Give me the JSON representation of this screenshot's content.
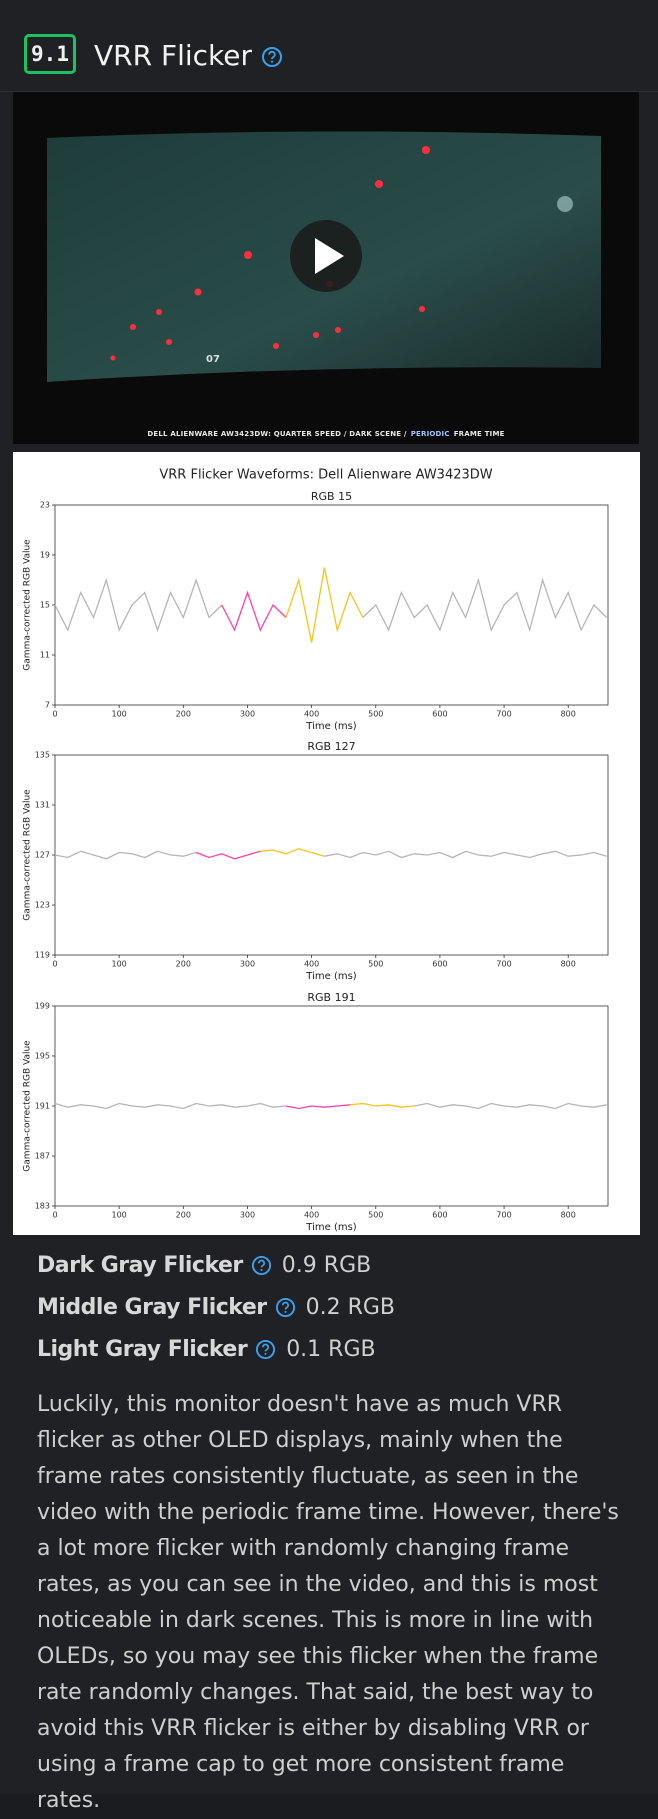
{
  "header": {
    "score": "9.1",
    "title": "VRR Flicker"
  },
  "video": {
    "overlay_text": "07",
    "caption": [
      "DELL ALIENWARE AW3423DW: QUARTER SPEED / DARK SCENE /",
      "PERIODIC",
      "FRAME TIME"
    ]
  },
  "figure": {
    "title": "VRR Flicker Waveforms: Dell Alienware AW3423DW",
    "chart_data": [
      {
        "type": "line",
        "title": "RGB 15",
        "x_label": "Time (ms)",
        "y_label": "Gamma-corrected RGB Value",
        "x": [
          0,
          20,
          40,
          60,
          80,
          100,
          120,
          140,
          160,
          180,
          200,
          220,
          240,
          260,
          280,
          300,
          320,
          340,
          360,
          380,
          400,
          420,
          440,
          460,
          480,
          500,
          520,
          540,
          560,
          580,
          600,
          620,
          640,
          660,
          680,
          700,
          720,
          740,
          760,
          780,
          800,
          820,
          840,
          860
        ],
        "xlim": [
          0,
          862
        ],
        "ylim": [
          7,
          23
        ],
        "xticks": [
          0,
          100,
          200,
          300,
          400,
          500,
          600,
          700,
          800
        ],
        "yticks": [
          7,
          11,
          15,
          19,
          23
        ],
        "series": [
          {
            "color": "#b5b5b5",
            "values": [
              15,
              13,
              16,
              14,
              17,
              13,
              15,
              16,
              13,
              16,
              14,
              17,
              14,
              15,
              null,
              null,
              null,
              null,
              null,
              null,
              null,
              null,
              null,
              null,
              14,
              15,
              13,
              16,
              14,
              15,
              13,
              16,
              14,
              17,
              13,
              15,
              16,
              13,
              17,
              14,
              16,
              13,
              15,
              14
            ]
          },
          {
            "color": "#ff3fae",
            "values": [
              null,
              null,
              null,
              null,
              null,
              null,
              null,
              null,
              null,
              null,
              null,
              null,
              null,
              15,
              13,
              16,
              13,
              15,
              14,
              null,
              null,
              null,
              null,
              null,
              null,
              null,
              null,
              null,
              null,
              null,
              null,
              null,
              null,
              null,
              null,
              null,
              null,
              null,
              null,
              null,
              null,
              null,
              null,
              null
            ]
          },
          {
            "color": "#f5c518",
            "values": [
              null,
              null,
              null,
              null,
              null,
              null,
              null,
              null,
              null,
              null,
              null,
              null,
              null,
              null,
              null,
              null,
              null,
              null,
              14,
              17,
              12,
              18,
              13,
              16,
              14,
              null,
              null,
              null,
              null,
              null,
              null,
              null,
              null,
              null,
              null,
              null,
              null,
              null,
              null,
              null,
              null,
              null,
              null,
              null
            ]
          }
        ]
      },
      {
        "type": "line",
        "title": "RGB 127",
        "x_label": "Time (ms)",
        "y_label": "Gamma-corrected RGB Value",
        "x": [
          0,
          20,
          40,
          60,
          80,
          100,
          120,
          140,
          160,
          180,
          200,
          220,
          240,
          260,
          280,
          300,
          320,
          340,
          360,
          380,
          400,
          420,
          440,
          460,
          480,
          500,
          520,
          540,
          560,
          580,
          600,
          620,
          640,
          660,
          680,
          700,
          720,
          740,
          760,
          780,
          800,
          820,
          840,
          860
        ],
        "xlim": [
          0,
          862
        ],
        "ylim": [
          119,
          135
        ],
        "xticks": [
          0,
          100,
          200,
          300,
          400,
          500,
          600,
          700,
          800
        ],
        "yticks": [
          119,
          123,
          127,
          131,
          135
        ],
        "series": [
          {
            "color": "#b5b5b5",
            "values": [
              127,
              126.8,
              127.3,
              127,
              126.7,
              127.2,
              127.1,
              126.8,
              127.3,
              127,
              126.9,
              127.2,
              null,
              null,
              null,
              null,
              null,
              null,
              null,
              null,
              null,
              126.9,
              127.1,
              126.8,
              127.2,
              127,
              127.3,
              126.8,
              127.1,
              127,
              127.2,
              126.8,
              127.3,
              127,
              126.9,
              127.2,
              127,
              126.8,
              127.1,
              127.3,
              126.9,
              127,
              127.2,
              126.9
            ]
          },
          {
            "color": "#ff3fae",
            "values": [
              null,
              null,
              null,
              null,
              null,
              null,
              null,
              null,
              null,
              null,
              null,
              127.2,
              126.8,
              127.1,
              126.7,
              127,
              127.3,
              null,
              null,
              null,
              null,
              null,
              null,
              null,
              null,
              null,
              null,
              null,
              null,
              null,
              null,
              null,
              null,
              null,
              null,
              null,
              null,
              null,
              null,
              null,
              null,
              null,
              null,
              null
            ]
          },
          {
            "color": "#f5c518",
            "values": [
              null,
              null,
              null,
              null,
              null,
              null,
              null,
              null,
              null,
              null,
              null,
              null,
              null,
              null,
              null,
              null,
              127.3,
              127.4,
              127.1,
              127.5,
              127.2,
              126.9,
              null,
              null,
              null,
              null,
              null,
              null,
              null,
              null,
              null,
              null,
              null,
              null,
              null,
              null,
              null,
              null,
              null,
              null,
              null,
              null,
              null,
              null
            ]
          }
        ]
      },
      {
        "type": "line",
        "title": "RGB 191",
        "x_label": "Time (ms)",
        "y_label": "Gamma-corrected RGB Value",
        "x": [
          0,
          20,
          40,
          60,
          80,
          100,
          120,
          140,
          160,
          180,
          200,
          220,
          240,
          260,
          280,
          300,
          320,
          340,
          360,
          380,
          400,
          420,
          440,
          460,
          480,
          500,
          520,
          540,
          560,
          580,
          600,
          620,
          640,
          660,
          680,
          700,
          720,
          740,
          760,
          780,
          800,
          820,
          840,
          860
        ],
        "xlim": [
          0,
          862
        ],
        "ylim": [
          183,
          199
        ],
        "xticks": [
          0,
          100,
          200,
          300,
          400,
          500,
          600,
          700,
          800
        ],
        "yticks": [
          183,
          187,
          191,
          195,
          199
        ],
        "series": [
          {
            "color": "#b5b5b5",
            "values": [
              191.2,
              190.9,
              191.1,
              191,
              190.8,
              191.2,
              191,
              190.9,
              191.1,
              191,
              190.8,
              191.2,
              191,
              191.1,
              190.9,
              191,
              191.2,
              190.9,
              191,
              null,
              null,
              null,
              null,
              null,
              null,
              null,
              null,
              null,
              191,
              191.2,
              190.9,
              191.1,
              191,
              190.8,
              191.2,
              191,
              190.9,
              191.1,
              191,
              190.8,
              191.2,
              191,
              190.9,
              191.1
            ]
          },
          {
            "color": "#ff3fae",
            "values": [
              null,
              null,
              null,
              null,
              null,
              null,
              null,
              null,
              null,
              null,
              null,
              null,
              null,
              null,
              null,
              null,
              null,
              null,
              191,
              190.8,
              191,
              190.9,
              191,
              191.1,
              null,
              null,
              null,
              null,
              null,
              null,
              null,
              null,
              null,
              null,
              null,
              null,
              null,
              null,
              null,
              null,
              null,
              null,
              null,
              null
            ]
          },
          {
            "color": "#f5c518",
            "values": [
              null,
              null,
              null,
              null,
              null,
              null,
              null,
              null,
              null,
              null,
              null,
              null,
              null,
              null,
              null,
              null,
              null,
              null,
              null,
              null,
              null,
              null,
              null,
              191.1,
              191.2,
              191,
              191.1,
              190.9,
              191,
              null,
              null,
              null,
              null,
              null,
              null,
              null,
              null,
              null,
              null,
              null,
              null,
              null,
              null,
              null
            ]
          }
        ]
      }
    ]
  },
  "metrics": [
    {
      "label": "Dark Gray Flicker",
      "value": "0.9 RGB"
    },
    {
      "label": "Middle Gray Flicker",
      "value": "0.2 RGB"
    },
    {
      "label": "Light Gray Flicker",
      "value": "0.1 RGB"
    }
  ],
  "description": "Luckily, this monitor doesn't have as much VRR flicker as other OLED displays, mainly when the frame rates consistently fluctuate, as seen in the video with the periodic frame time. However, there's a lot more flicker with randomly changing frame rates, as you can see in the video, and this is most noticeable in dark scenes. This is more in line with OLEDs, so you may see this flicker when the frame rate randomly changes. That said, the best way to avoid this VRR flicker is either by disabling VRR or using a frame cap to get more consistent frame rates."
}
